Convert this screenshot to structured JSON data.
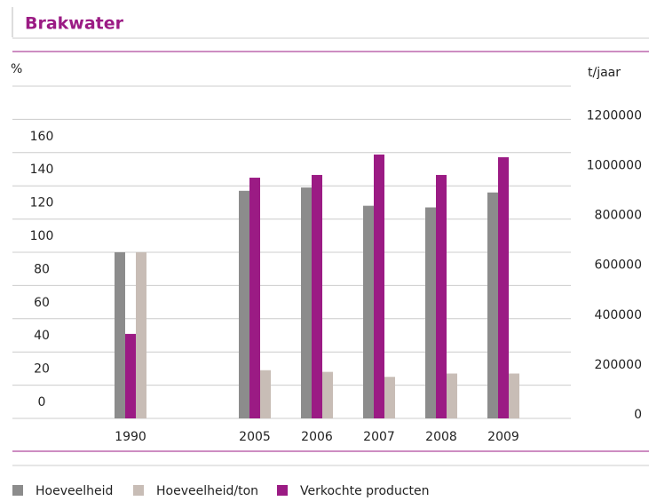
{
  "chart_data": {
    "type": "bar",
    "title": "Brakwater",
    "ylabel": "%",
    "y2label": "t/jaar",
    "categories": [
      "1990",
      null,
      "2005",
      "2006",
      "2007",
      "2008",
      "2009"
    ],
    "series": [
      {
        "name": "Hoeveelheid",
        "color": "#8c8c8c",
        "values": [
          100,
          null,
          137,
          139,
          128,
          127,
          136
        ]
      },
      {
        "name": "Verkochte producten",
        "color": "#9b1b84",
        "axis": "y2",
        "values": [
          339000,
          null,
          966000,
          977000,
          1059000,
          977000,
          1048000
        ]
      },
      {
        "name": "Hoeveelheid/ton",
        "color": "#c8bdb6",
        "values": [
          100,
          null,
          29,
          28,
          25,
          27,
          27
        ]
      }
    ],
    "legend_order": [
      "Hoeveelheid",
      "Hoeveelheid/ton",
      "Verkochte producten"
    ],
    "ylim": [
      0,
      200
    ],
    "yticks": [
      0,
      20,
      40,
      60,
      80,
      100,
      120,
      140,
      160
    ],
    "y2lim": [
      0,
      1333333
    ],
    "y2ticks": [
      0,
      200000,
      400000,
      600000,
      800000,
      1000000,
      1200000
    ],
    "grid": true
  }
}
